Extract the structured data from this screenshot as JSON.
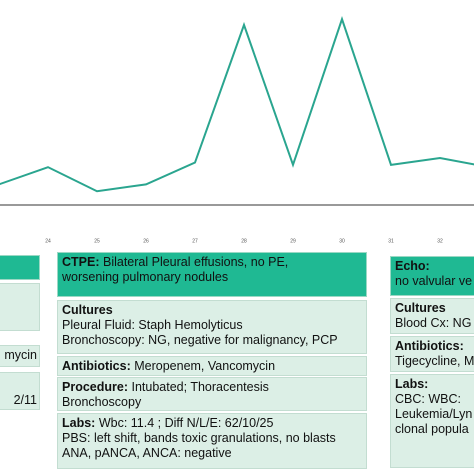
{
  "chart_data": {
    "type": "line",
    "categories": [
      null,
      "24",
      "25",
      "26",
      "27",
      "28",
      "29",
      "30",
      "31",
      "32",
      null
    ],
    "series": [
      {
        "color": "#2aa58f",
        "values": [
          18,
          33,
          12,
          18,
          37,
          157,
          35,
          162,
          35,
          41,
          33
        ]
      }
    ],
    "ylim": [
      0,
      170
    ]
  },
  "cards": {
    "left": {
      "lines": [
        "mycin",
        "2/11"
      ]
    },
    "middle": {
      "header": {
        "label": "CTPE:",
        "lines": [
          "Bilateral Pleural effusions, no PE,",
          "worsening pulmonary nodules"
        ]
      },
      "cultures": {
        "label": "Cultures",
        "lines": [
          "Pleural Fluid: Staph Hemolyticus",
          "Bronchoscopy: NG, negative for malignancy, PCP"
        ]
      },
      "antibiotics": {
        "label": "Antibiotics:",
        "text": "Meropenem, Vancomycin"
      },
      "procedure": {
        "label": "Procedure:",
        "lines": [
          "Intubated; Thoracentesis",
          "Bronchoscopy"
        ]
      },
      "labs": {
        "label": "Labs:",
        "lines": [
          "Wbc: 11.4 ; Diff N/L/E: 62/10/25",
          "PBS: left shift, bands  toxic granulations, no blasts",
          "ANA, pANCA, ANCA: negative"
        ]
      }
    },
    "right": {
      "header": {
        "label": "Echo:",
        "text": "no valvular ve"
      },
      "cultures": {
        "label": "Cultures",
        "text": "Blood Cx: NG"
      },
      "antibiotics": {
        "label": "Antibiotics:",
        "text": "Tigecycline, M"
      },
      "labs": {
        "label": "Labs:",
        "lines": [
          "CBC: WBC:",
          "Leukemia/Lyn",
          "clonal popula"
        ]
      }
    }
  }
}
